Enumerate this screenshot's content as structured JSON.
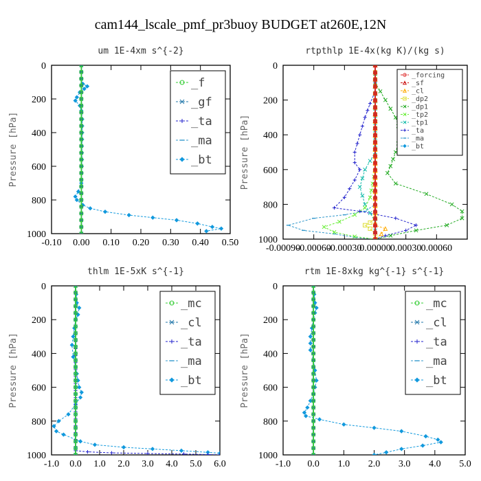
{
  "figure": {
    "title": "cam144_lscale_pmf_pr3buoy  BUDGET at260E,12N"
  },
  "chart_data": [
    {
      "type": "line",
      "title": "um  1E-4xm s^{-2}",
      "ylabel": "Pressure [hPa]",
      "xlim": [
        -0.1,
        0.5
      ],
      "ylim": [
        1000,
        0
      ],
      "xticks": [
        "-0.10",
        "0.00",
        "0.10",
        "0.20",
        "0.30",
        "0.40",
        "0.50"
      ],
      "xtick_values": [
        -0.1,
        0.0,
        0.1,
        0.2,
        0.3,
        0.4,
        0.5
      ],
      "yticks": [
        "0",
        "200",
        "400",
        "600",
        "800",
        "1000"
      ],
      "ytick_values": [
        0,
        200,
        400,
        600,
        800,
        1000
      ],
      "legend": {
        "position": "top-right",
        "size": "large"
      },
      "series": [
        {
          "name": "_f",
          "color": "#33cc33",
          "marker": "circle",
          "x": [
            0.0,
            0.0
          ],
          "y": [
            0,
            1000
          ]
        },
        {
          "name": "_gf",
          "color": "#2277aa",
          "marker": "x",
          "x": [
            0.0,
            0.0
          ],
          "y": [
            0,
            1000
          ]
        },
        {
          "name": "_ta",
          "color": "#2222cc",
          "marker": "plus",
          "x": [
            0.0,
            0.0
          ],
          "y": [
            0,
            1000
          ]
        },
        {
          "name": "_ma",
          "color": "#3399cc",
          "marker": "dash",
          "x": [
            0.0,
            0.0
          ],
          "y": [
            0,
            1000
          ]
        },
        {
          "name": "_bt",
          "color": "#1199dd",
          "marker": "diamond",
          "x": [
            0.0,
            0.0,
            0.005,
            0.02,
            0.01,
            -0.005,
            -0.015,
            -0.02,
            -0.005,
            0.0,
            0.003,
            0.003,
            0.002,
            0.002,
            0.001,
            0.0,
            -0.01,
            -0.02,
            -0.015,
            0.005,
            0.03,
            0.08,
            0.16,
            0.24,
            0.32,
            0.39,
            0.44,
            0.47,
            0.42
          ],
          "y": [
            0,
            80,
            110,
            125,
            140,
            160,
            190,
            210,
            240,
            270,
            320,
            400,
            480,
            560,
            640,
            700,
            750,
            780,
            800,
            830,
            850,
            870,
            890,
            905,
            920,
            940,
            960,
            970,
            985
          ]
        }
      ]
    },
    {
      "type": "line",
      "title": "rtpthlp  1E-4x(kg K)/(kg s)",
      "ylabel": "Pressure [hPa]",
      "xlim": [
        -0.0009,
        0.0009
      ],
      "ylim": [
        1000,
        0
      ],
      "xticks": [
        "-0.00090",
        "-0.00060",
        "-0.00030",
        "0.00000",
        "0.00030",
        "0.00060"
      ],
      "xtick_values": [
        -0.0009,
        -0.0006,
        -0.0003,
        0.0,
        0.0003,
        0.0006
      ],
      "yticks": [
        "0",
        "200",
        "400",
        "600",
        "800",
        "1000"
      ],
      "ytick_values": [
        0,
        200,
        400,
        600,
        800,
        1000
      ],
      "legend": {
        "position": "top-right",
        "size": "small"
      },
      "series": [
        {
          "name": "_forcing",
          "color": "#dd2222",
          "marker": "circle",
          "x": [
            0.0,
            0.0
          ],
          "y": [
            0,
            1000
          ]
        },
        {
          "name": "_sf",
          "color": "#cc1111",
          "marker": "triangle",
          "x": [
            0.0,
            0.0
          ],
          "y": [
            0,
            1000
          ]
        },
        {
          "name": "_cl",
          "color": "#ffaa00",
          "marker": "triangle",
          "x": [
            0.0,
            0.0,
            0.0,
            0.0,
            0.0,
            0.0001,
            6e-05,
            0.0
          ],
          "y": [
            0,
            850,
            880,
            905,
            920,
            940,
            970,
            1000
          ]
        },
        {
          "name": "_dp2",
          "color": "#dddd33",
          "marker": "square",
          "x": [
            0.0,
            0.0,
            0.0,
            -5e-05,
            -0.0001,
            -5e-05,
            0.0,
            0.0
          ],
          "y": [
            0,
            850,
            880,
            905,
            920,
            940,
            970,
            1000
          ]
        },
        {
          "name": "_dp1",
          "color": "#22aa22",
          "marker": "x",
          "x": [
            0.0,
            0.0,
            0.0001,
            0.0002,
            0.00025,
            0.0002,
            0.00015,
            0.00012,
            0.0002,
            0.0005,
            0.00075,
            0.00085,
            0.00085,
            0.0007,
            0.0004,
            0.00015,
            0.0
          ],
          "y": [
            0,
            100,
            200,
            300,
            400,
            500,
            580,
            620,
            680,
            740,
            800,
            840,
            880,
            920,
            950,
            980,
            1000
          ]
        },
        {
          "name": "_tp2",
          "color": "#66ee33",
          "marker": "x",
          "x": [
            0.0,
            0.0,
            -5e-05,
            -0.0001,
            -0.0002,
            -0.00035,
            -0.0005,
            -0.0004,
            -0.0002,
            0.0
          ],
          "y": [
            0,
            600,
            760,
            820,
            860,
            900,
            930,
            960,
            985,
            1000
          ]
        },
        {
          "name": "_tp1",
          "color": "#11bbaa",
          "marker": "x",
          "x": [
            0.0,
            0.0,
            -0.0001,
            -0.00015,
            -0.0001,
            0.0,
            0.0
          ],
          "y": [
            0,
            500,
            600,
            700,
            800,
            900,
            1000
          ]
        },
        {
          "name": "_ta",
          "color": "#2222cc",
          "marker": "plus",
          "x": [
            0.0,
            0.0,
            -5e-05,
            -0.0001,
            -0.00015,
            -0.0002,
            -0.0002,
            -0.00015,
            -0.0002,
            -0.0003,
            -0.0004,
            -0.00015,
            0.0002,
            0.0004,
            0.0003,
            0.0001,
            0.0
          ],
          "y": [
            0,
            150,
            220,
            300,
            400,
            500,
            560,
            600,
            660,
            760,
            820,
            840,
            880,
            920,
            950,
            980,
            1000
          ]
        },
        {
          "name": "_ma",
          "color": "#3399cc",
          "marker": "dash",
          "x": [
            0.0,
            0.0,
            -0.0001,
            -0.0003,
            -0.0006,
            -0.00085,
            -0.0007,
            -0.0004,
            -0.0002,
            0.0
          ],
          "y": [
            0,
            800,
            840,
            860,
            880,
            920,
            950,
            970,
            990,
            1000
          ]
        },
        {
          "name": "_bt",
          "color": "#1199dd",
          "marker": "diamond",
          "x": [
            0.0,
            0.0
          ],
          "y": [
            0,
            1000
          ]
        }
      ]
    },
    {
      "type": "line",
      "title": "thlm  1E-5xK s^{-1}",
      "ylabel": "Pressure [hPa]",
      "xlim": [
        -1.0,
        6.0
      ],
      "ylim": [
        1000,
        0
      ],
      "xticks": [
        "-1.0",
        "0.0",
        "1.0",
        "2.0",
        "3.0",
        "4.0",
        "5.0",
        "6.0"
      ],
      "xtick_values": [
        -1,
        0,
        1,
        2,
        3,
        4,
        5,
        6
      ],
      "yticks": [
        "0",
        "200",
        "400",
        "600",
        "800",
        "1000"
      ],
      "ytick_values": [
        0,
        200,
        400,
        600,
        800,
        1000
      ],
      "legend": {
        "position": "top-right",
        "size": "large"
      },
      "series": [
        {
          "name": "_mc",
          "color": "#33cc33",
          "marker": "circle",
          "x": [
            0.0,
            0.0
          ],
          "y": [
            0,
            1000
          ]
        },
        {
          "name": "_cl",
          "color": "#2277aa",
          "marker": "x",
          "x": [
            0.0,
            0.0
          ],
          "y": [
            0,
            1000
          ]
        },
        {
          "name": "_ta",
          "color": "#2222cc",
          "marker": "plus",
          "x": [
            0.0,
            0.0,
            0.0,
            0.5,
            1.5,
            3.0,
            4.5,
            5.5,
            6.0
          ],
          "y": [
            0,
            950,
            975,
            982,
            988,
            992,
            995,
            998,
            1000
          ]
        },
        {
          "name": "_ma",
          "color": "#3399cc",
          "marker": "dash",
          "x": [
            0.0,
            0.0
          ],
          "y": [
            0,
            1000
          ]
        },
        {
          "name": "_bt",
          "color": "#1199dd",
          "marker": "diamond",
          "x": [
            0.0,
            0.05,
            0.15,
            0.1,
            0.0,
            -0.05,
            -0.1,
            -0.15,
            -0.1,
            0.0,
            0.15,
            0.25,
            0.2,
            0.0,
            -0.3,
            -0.7,
            -0.9,
            -0.8,
            -0.5,
            0.2,
            0.8,
            2.0,
            3.2,
            4.4,
            5.5,
            6.0
          ],
          "y": [
            0,
            100,
            130,
            170,
            200,
            250,
            300,
            350,
            420,
            480,
            600,
            630,
            660,
            700,
            760,
            800,
            830,
            860,
            880,
            920,
            940,
            955,
            965,
            975,
            985,
            990
          ]
        }
      ]
    },
    {
      "type": "line",
      "title": "rtm  1E-8xkg kg^{-1} s^{-1}",
      "ylabel": "Pressure [hPa]",
      "xlim": [
        -1.0,
        5.0
      ],
      "ylim": [
        1000,
        0
      ],
      "xticks": [
        "-1.0",
        "0.0",
        "1.0",
        "2.0",
        "3.0",
        "4.0",
        "5.0"
      ],
      "xtick_values": [
        -1,
        0,
        1,
        2,
        3,
        4,
        5
      ],
      "yticks": [
        "0",
        "200",
        "400",
        "600",
        "800",
        "1000"
      ],
      "ytick_values": [
        0,
        200,
        400,
        600,
        800,
        1000
      ],
      "legend": {
        "position": "top-right",
        "size": "large"
      },
      "series": [
        {
          "name": "_mc",
          "color": "#33cc33",
          "marker": "circle",
          "x": [
            0.0,
            0.0
          ],
          "y": [
            0,
            1000
          ]
        },
        {
          "name": "_cl",
          "color": "#2277aa",
          "marker": "x",
          "x": [
            0.0,
            0.0
          ],
          "y": [
            0,
            1000
          ]
        },
        {
          "name": "_ta",
          "color": "#2222cc",
          "marker": "plus",
          "x": [
            0.0,
            0.0
          ],
          "y": [
            0,
            1000
          ]
        },
        {
          "name": "_ma",
          "color": "#3399cc",
          "marker": "dash",
          "x": [
            0.0,
            0.0
          ],
          "y": [
            0,
            1000
          ]
        },
        {
          "name": "_bt",
          "color": "#1199dd",
          "marker": "diamond",
          "x": [
            0.0,
            0.05,
            0.1,
            0.05,
            0.0,
            -0.05,
            -0.1,
            -0.1,
            0.0,
            0.05,
            0.1,
            0.05,
            0.0,
            -0.1,
            -0.2,
            -0.3,
            -0.25,
            0.2,
            1.0,
            2.0,
            2.9,
            3.7,
            4.1,
            4.2,
            3.6,
            2.9,
            2.4,
            2.0
          ],
          "y": [
            0,
            100,
            130,
            160,
            200,
            250,
            300,
            380,
            440,
            500,
            560,
            600,
            640,
            680,
            720,
            750,
            770,
            790,
            820,
            840,
            860,
            890,
            910,
            925,
            945,
            965,
            985,
            1000
          ]
        }
      ]
    }
  ]
}
